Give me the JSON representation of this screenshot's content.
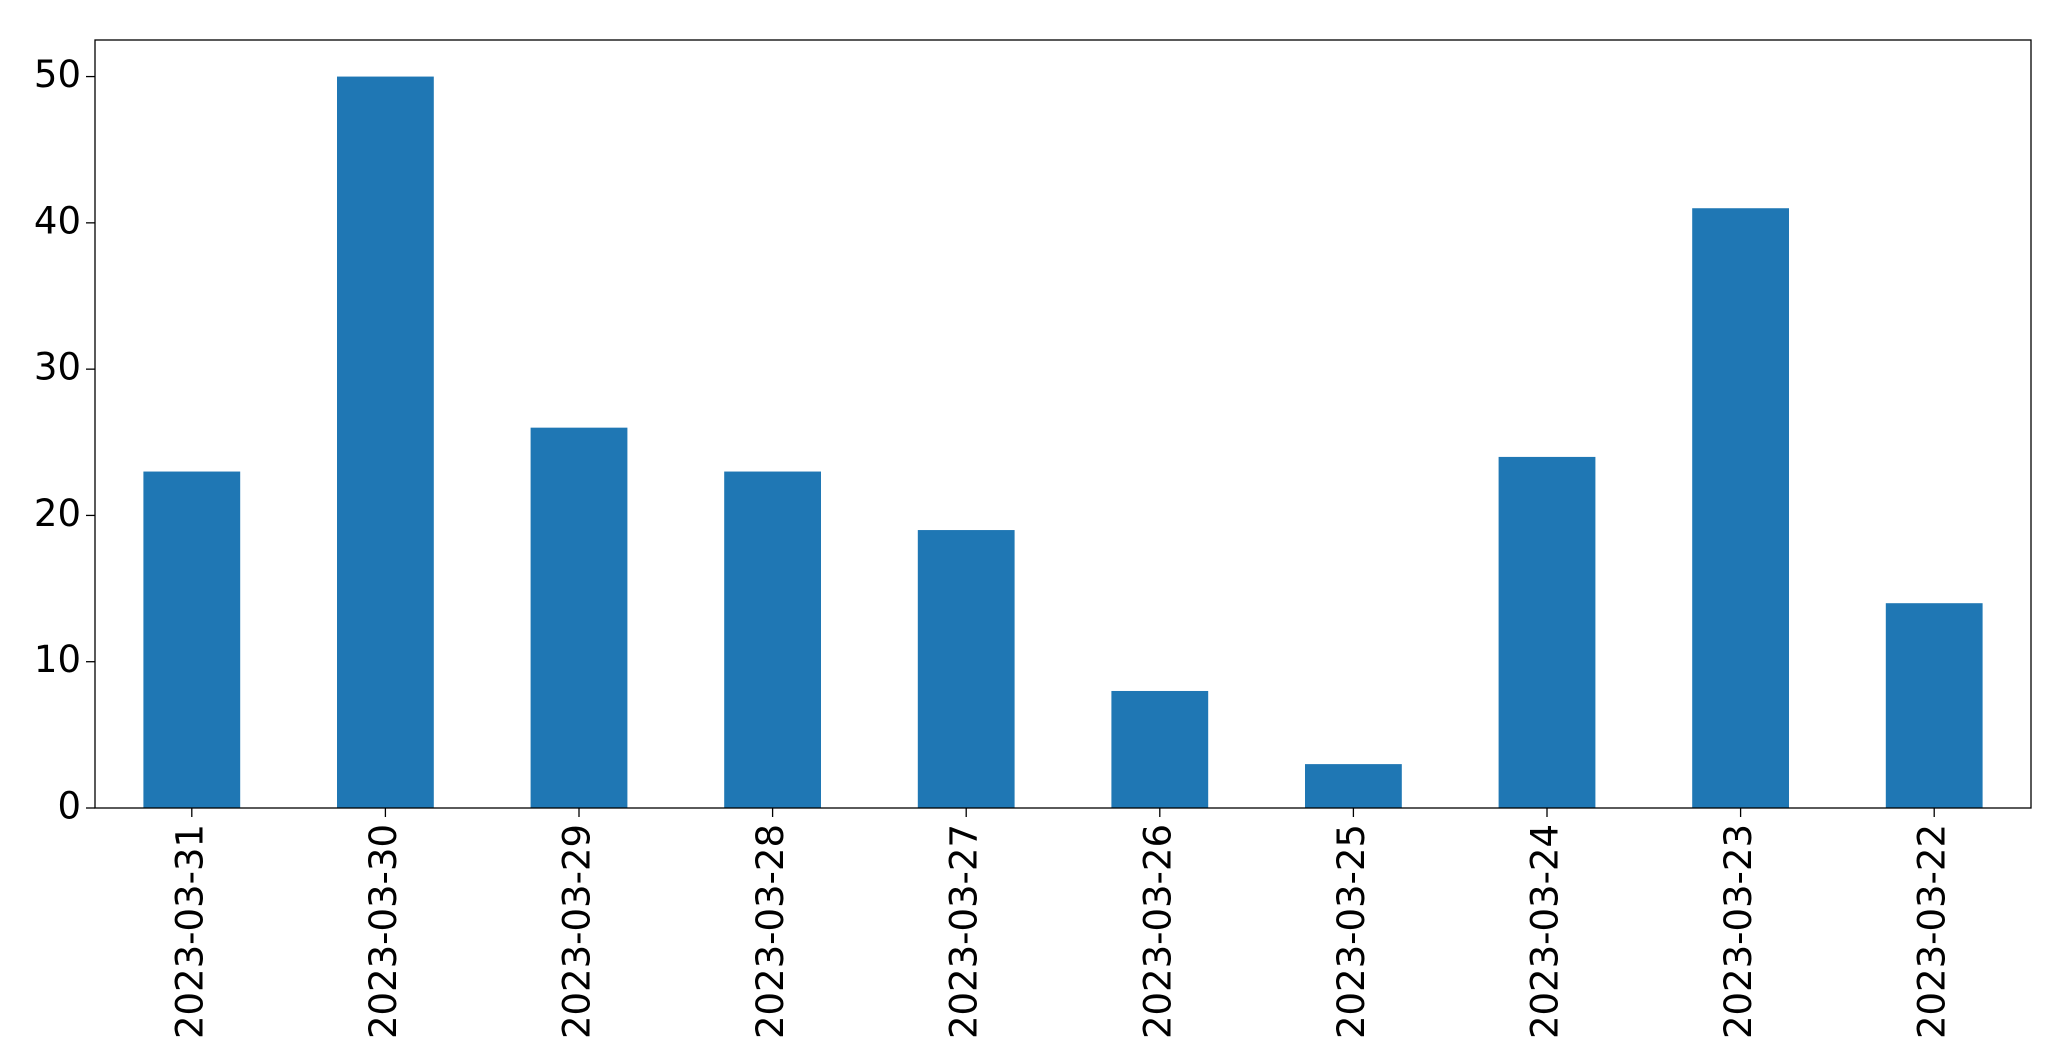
{
  "chart_data": {
    "type": "bar",
    "categories": [
      "2023-03-31",
      "2023-03-30",
      "2023-03-29",
      "2023-03-28",
      "2023-03-27",
      "2023-03-26",
      "2023-03-25",
      "2023-03-24",
      "2023-03-23",
      "2023-03-22"
    ],
    "values": [
      23,
      50,
      26,
      23,
      19,
      8,
      3,
      24,
      41,
      14
    ],
    "color": "#1f77b4",
    "ylim": [
      0,
      52.5
    ],
    "yticks": [
      0,
      10,
      20,
      30,
      40,
      50
    ],
    "grid": false
  }
}
